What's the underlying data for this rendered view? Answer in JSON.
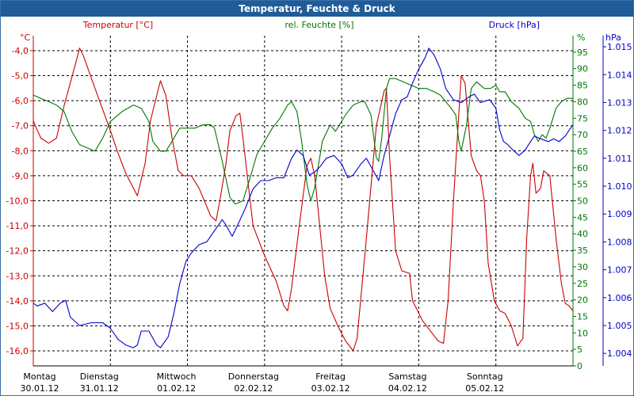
{
  "window": {
    "title": "Temperatur, Feuchte & Druck"
  },
  "colors": {
    "temp": "#cc0000",
    "hum": "#007700",
    "press": "#0000cc",
    "grid": "#000000"
  },
  "chart_data": {
    "type": "line",
    "title": "Temperatur, Feuchte & Druck",
    "xlabel": "",
    "x_range": [
      0,
      7
    ],
    "days": [
      {
        "day": "Montag",
        "date": "30.01.12"
      },
      {
        "day": "Dienstag",
        "date": "31.01.12"
      },
      {
        "day": "Mittwoch",
        "date": "01.02.12"
      },
      {
        "day": "Donnerstag",
        "date": "02.02.12"
      },
      {
        "day": "Freitag",
        "date": "03.02.12"
      },
      {
        "day": "Samstag",
        "date": "04.02.12"
      },
      {
        "day": "Sonntag",
        "date": "05.02.12"
      }
    ],
    "axes": {
      "temp": {
        "label": "Temperatur [°C]",
        "unit": "°C",
        "ylim": [
          -16.6,
          -3.4
        ],
        "ticks": [
          -4,
          -5,
          -6,
          -7,
          -8,
          -9,
          -10,
          -11,
          -12,
          -13,
          -14,
          -15,
          -16
        ],
        "tick_labels": [
          "-4,0",
          "-5,0",
          "-6,0",
          "-7,0",
          "-8,0",
          "-9,0",
          "-10,0",
          "-11,0",
          "-12,0",
          "-13,0",
          "-14,0",
          "-15,0",
          "-16,0"
        ]
      },
      "hum": {
        "label": "rel. Feuchte [%]",
        "unit": "%",
        "ylim": [
          0,
          100
        ],
        "ticks": [
          0,
          5,
          10,
          15,
          20,
          25,
          30,
          35,
          40,
          45,
          50,
          55,
          60,
          65,
          70,
          75,
          80,
          85,
          90,
          95
        ],
        "tick_labels": [
          "0",
          "5",
          "10",
          "15",
          "20",
          "25",
          "30",
          "35",
          "40",
          "45",
          "50",
          "55",
          "60",
          "65",
          "70",
          "75",
          "80",
          "85",
          "90",
          "95"
        ]
      },
      "press": {
        "label": "Druck [hPa]",
        "unit": "hPa",
        "ylim": [
          1003.55,
          1015.4
        ],
        "ticks": [
          1004,
          1005,
          1006,
          1007,
          1008,
          1009,
          1010,
          1011,
          1012,
          1013,
          1014,
          1015
        ],
        "tick_labels": [
          "1.004",
          "1.005",
          "1.006",
          "1.007",
          "1.008",
          "1.009",
          "1.010",
          "1.011",
          "1.012",
          "1.013",
          "1.014",
          "1.015"
        ]
      }
    },
    "series": [
      {
        "name": "Temperatur",
        "axis": "temp",
        "points": [
          [
            0,
            -6.8
          ],
          [
            0.04,
            -7.1
          ],
          [
            0.1,
            -7.5
          ],
          [
            0.2,
            -7.7
          ],
          [
            0.3,
            -7.5
          ],
          [
            0.4,
            -6.2
          ],
          [
            0.55,
            -4.5
          ],
          [
            0.6,
            -3.9
          ],
          [
            0.65,
            -4.2
          ],
          [
            0.8,
            -5.5
          ],
          [
            1.0,
            -7.2
          ],
          [
            1.1,
            -8.1
          ],
          [
            1.2,
            -8.9
          ],
          [
            1.35,
            -9.8
          ],
          [
            1.45,
            -8.5
          ],
          [
            1.52,
            -6.8
          ],
          [
            1.6,
            -5.8
          ],
          [
            1.65,
            -5.2
          ],
          [
            1.72,
            -5.8
          ],
          [
            1.8,
            -7.5
          ],
          [
            1.88,
            -8.8
          ],
          [
            1.95,
            -9.0
          ],
          [
            2.05,
            -9.0
          ],
          [
            2.15,
            -9.5
          ],
          [
            2.3,
            -10.6
          ],
          [
            2.37,
            -10.8
          ],
          [
            2.42,
            -10.0
          ],
          [
            2.5,
            -8.5
          ],
          [
            2.55,
            -7.2
          ],
          [
            2.63,
            -6.6
          ],
          [
            2.68,
            -6.5
          ],
          [
            2.72,
            -7.5
          ],
          [
            2.85,
            -11.0
          ],
          [
            3.0,
            -12.2
          ],
          [
            3.15,
            -13.2
          ],
          [
            3.25,
            -14.2
          ],
          [
            3.3,
            -14.4
          ],
          [
            3.35,
            -13.5
          ],
          [
            3.45,
            -11.0
          ],
          [
            3.55,
            -8.6
          ],
          [
            3.6,
            -8.3
          ],
          [
            3.65,
            -9.0
          ],
          [
            3.78,
            -13.0
          ],
          [
            3.85,
            -14.3
          ],
          [
            3.95,
            -15.0
          ],
          [
            4.05,
            -15.6
          ],
          [
            4.15,
            -16.0
          ],
          [
            4.2,
            -15.5
          ],
          [
            4.32,
            -11.5
          ],
          [
            4.45,
            -7.0
          ],
          [
            4.55,
            -5.6
          ],
          [
            4.58,
            -5.5
          ],
          [
            4.62,
            -8.2
          ],
          [
            4.7,
            -12.0
          ],
          [
            4.78,
            -12.8
          ],
          [
            4.88,
            -12.9
          ],
          [
            4.92,
            -14.0
          ],
          [
            5.05,
            -14.8
          ],
          [
            5.15,
            -15.2
          ],
          [
            5.25,
            -15.6
          ],
          [
            5.32,
            -15.7
          ],
          [
            5.38,
            -14.0
          ],
          [
            5.45,
            -10.0
          ],
          [
            5.52,
            -6.5
          ],
          [
            5.55,
            -5.0
          ],
          [
            5.6,
            -5.3
          ],
          [
            5.68,
            -8.2
          ],
          [
            5.75,
            -8.8
          ],
          [
            5.8,
            -9.0
          ],
          [
            5.85,
            -10.0
          ],
          [
            5.9,
            -12.5
          ],
          [
            5.98,
            -14.0
          ],
          [
            6.05,
            -14.4
          ],
          [
            6.12,
            -14.5
          ],
          [
            6.2,
            -15.0
          ],
          [
            6.28,
            -15.8
          ],
          [
            6.35,
            -15.5
          ],
          [
            6.4,
            -11.5
          ],
          [
            6.45,
            -9.0
          ],
          [
            6.48,
            -8.5
          ],
          [
            6.52,
            -9.7
          ],
          [
            6.58,
            -9.5
          ],
          [
            6.62,
            -8.8
          ],
          [
            6.7,
            -9.0
          ],
          [
            6.78,
            -11.5
          ],
          [
            6.85,
            -13.3
          ],
          [
            6.9,
            -14.1
          ],
          [
            6.95,
            -14.2
          ],
          [
            7.0,
            -14.4
          ]
        ]
      },
      {
        "name": "rel. Feuchte",
        "axis": "hum",
        "points": [
          [
            0,
            82
          ],
          [
            0.1,
            81
          ],
          [
            0.2,
            80
          ],
          [
            0.3,
            79
          ],
          [
            0.4,
            77
          ],
          [
            0.5,
            71
          ],
          [
            0.6,
            67
          ],
          [
            0.7,
            66
          ],
          [
            0.8,
            65
          ],
          [
            0.9,
            69
          ],
          [
            1.0,
            74
          ],
          [
            1.15,
            77
          ],
          [
            1.3,
            79
          ],
          [
            1.4,
            78
          ],
          [
            1.5,
            74
          ],
          [
            1.55,
            68
          ],
          [
            1.65,
            65
          ],
          [
            1.72,
            65
          ],
          [
            1.8,
            68
          ],
          [
            1.9,
            72
          ],
          [
            2.0,
            72
          ],
          [
            2.1,
            72
          ],
          [
            2.2,
            73
          ],
          [
            2.3,
            73
          ],
          [
            2.35,
            72
          ],
          [
            2.45,
            62
          ],
          [
            2.55,
            51
          ],
          [
            2.62,
            49
          ],
          [
            2.72,
            50
          ],
          [
            2.8,
            56
          ],
          [
            2.9,
            64
          ],
          [
            3.0,
            68
          ],
          [
            3.1,
            72
          ],
          [
            3.2,
            75
          ],
          [
            3.3,
            79
          ],
          [
            3.35,
            80
          ],
          [
            3.42,
            77
          ],
          [
            3.48,
            68
          ],
          [
            3.55,
            55
          ],
          [
            3.6,
            50
          ],
          [
            3.65,
            54
          ],
          [
            3.75,
            68
          ],
          [
            3.85,
            73
          ],
          [
            3.92,
            71
          ],
          [
            4.05,
            76
          ],
          [
            4.15,
            79
          ],
          [
            4.25,
            80
          ],
          [
            4.3,
            80
          ],
          [
            4.38,
            76
          ],
          [
            4.45,
            63
          ],
          [
            4.48,
            62
          ],
          [
            4.52,
            69
          ],
          [
            4.58,
            84
          ],
          [
            4.62,
            87
          ],
          [
            4.7,
            87
          ],
          [
            4.8,
            86
          ],
          [
            4.9,
            85
          ],
          [
            5.0,
            84
          ],
          [
            5.1,
            84
          ],
          [
            5.2,
            83
          ],
          [
            5.28,
            82
          ],
          [
            5.35,
            80
          ],
          [
            5.42,
            78
          ],
          [
            5.48,
            76
          ],
          [
            5.52,
            68
          ],
          [
            5.55,
            65
          ],
          [
            5.62,
            73
          ],
          [
            5.68,
            84
          ],
          [
            5.75,
            86
          ],
          [
            5.85,
            84
          ],
          [
            5.93,
            84
          ],
          [
            6.0,
            85
          ],
          [
            6.05,
            83
          ],
          [
            6.12,
            83
          ],
          [
            6.2,
            80
          ],
          [
            6.3,
            78
          ],
          [
            6.38,
            75
          ],
          [
            6.45,
            74
          ],
          [
            6.5,
            70
          ],
          [
            6.55,
            68
          ],
          [
            6.6,
            70
          ],
          [
            6.65,
            69
          ],
          [
            6.7,
            72
          ],
          [
            6.78,
            78
          ],
          [
            6.85,
            80
          ],
          [
            6.92,
            81
          ],
          [
            7.0,
            81
          ]
        ]
      },
      {
        "name": "Druck",
        "axis": "press",
        "points": [
          [
            0,
            1005.8
          ],
          [
            0.05,
            1005.7
          ],
          [
            0.15,
            1005.8
          ],
          [
            0.25,
            1005.5
          ],
          [
            0.35,
            1005.8
          ],
          [
            0.42,
            1005.9
          ],
          [
            0.48,
            1005.3
          ],
          [
            0.6,
            1005.0
          ],
          [
            0.75,
            1005.1
          ],
          [
            0.9,
            1005.1
          ],
          [
            1.0,
            1004.9
          ],
          [
            1.1,
            1004.5
          ],
          [
            1.2,
            1004.3
          ],
          [
            1.3,
            1004.2
          ],
          [
            1.35,
            1004.3
          ],
          [
            1.4,
            1004.8
          ],
          [
            1.5,
            1004.8
          ],
          [
            1.6,
            1004.3
          ],
          [
            1.65,
            1004.2
          ],
          [
            1.75,
            1004.6
          ],
          [
            1.82,
            1005.4
          ],
          [
            1.9,
            1006.5
          ],
          [
            1.98,
            1007.3
          ],
          [
            2.05,
            1007.6
          ],
          [
            2.15,
            1007.9
          ],
          [
            2.25,
            1008.0
          ],
          [
            2.35,
            1008.4
          ],
          [
            2.45,
            1008.8
          ],
          [
            2.5,
            1008.6
          ],
          [
            2.58,
            1008.2
          ],
          [
            2.65,
            1008.6
          ],
          [
            2.75,
            1009.2
          ],
          [
            2.85,
            1009.9
          ],
          [
            2.95,
            1010.2
          ],
          [
            3.05,
            1010.2
          ],
          [
            3.15,
            1010.3
          ],
          [
            3.25,
            1010.3
          ],
          [
            3.35,
            1011.0
          ],
          [
            3.42,
            1011.3
          ],
          [
            3.5,
            1011.1
          ],
          [
            3.58,
            1010.4
          ],
          [
            3.65,
            1010.5
          ],
          [
            3.72,
            1010.7
          ],
          [
            3.8,
            1011.0
          ],
          [
            3.9,
            1011.1
          ],
          [
            4.0,
            1010.8
          ],
          [
            4.08,
            1010.3
          ],
          [
            4.15,
            1010.4
          ],
          [
            4.25,
            1010.8
          ],
          [
            4.32,
            1011.0
          ],
          [
            4.4,
            1010.6
          ],
          [
            4.48,
            1010.2
          ],
          [
            4.55,
            1011.1
          ],
          [
            4.62,
            1011.8
          ],
          [
            4.7,
            1012.6
          ],
          [
            4.78,
            1013.1
          ],
          [
            4.85,
            1013.2
          ],
          [
            4.92,
            1013.7
          ],
          [
            5.0,
            1014.2
          ],
          [
            5.08,
            1014.6
          ],
          [
            5.13,
            1014.95
          ],
          [
            5.2,
            1014.7
          ],
          [
            5.28,
            1014.2
          ],
          [
            5.35,
            1013.5
          ],
          [
            5.45,
            1013.1
          ],
          [
            5.55,
            1013.0
          ],
          [
            5.65,
            1013.2
          ],
          [
            5.72,
            1013.3
          ],
          [
            5.8,
            1013.0
          ],
          [
            5.92,
            1013.1
          ],
          [
            6.0,
            1012.8
          ],
          [
            6.05,
            1012.0
          ],
          [
            6.1,
            1011.6
          ],
          [
            6.15,
            1011.5
          ],
          [
            6.22,
            1011.3
          ],
          [
            6.3,
            1011.1
          ],
          [
            6.38,
            1011.3
          ],
          [
            6.45,
            1011.6
          ],
          [
            6.5,
            1011.8
          ],
          [
            6.58,
            1011.7
          ],
          [
            6.68,
            1011.6
          ],
          [
            6.75,
            1011.7
          ],
          [
            6.82,
            1011.6
          ],
          [
            6.9,
            1011.8
          ],
          [
            6.95,
            1012.0
          ],
          [
            7.0,
            1012.2
          ]
        ]
      }
    ]
  }
}
